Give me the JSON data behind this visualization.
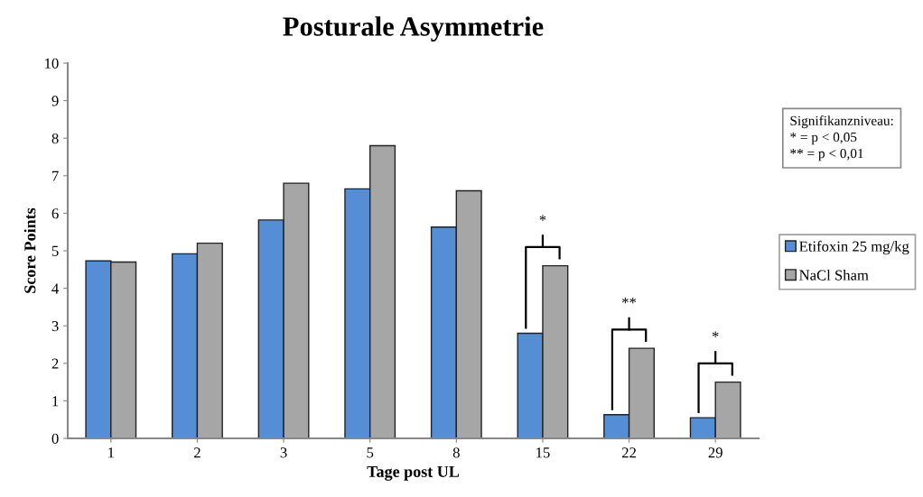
{
  "chart_data": {
    "type": "bar",
    "title": "Posturale Asymmetrie",
    "xlabel": "Tage post UL",
    "ylabel": "Score Points",
    "categories": [
      "1",
      "2",
      "3",
      "5",
      "8",
      "15",
      "22",
      "29"
    ],
    "series": [
      {
        "name": "Etifoxin 25 mg/kg",
        "color": "#558ed5",
        "values": [
          4.73,
          4.92,
          5.82,
          6.65,
          5.63,
          2.8,
          0.63,
          0.55
        ]
      },
      {
        "name": "NaCl Sham",
        "color": "#a6a6a6",
        "values": [
          4.7,
          5.2,
          6.8,
          7.8,
          6.6,
          4.6,
          2.4,
          1.5
        ]
      }
    ],
    "ylim": [
      0,
      10
    ],
    "yticks": [
      0,
      1,
      2,
      3,
      4,
      5,
      6,
      7,
      8,
      9,
      10
    ],
    "grid": false,
    "legend": "right",
    "annotations": [
      "Signifikanzniveau:\n* = p < 0,05\n** = p < 0,01",
      "*",
      "**",
      "*"
    ]
  }
}
